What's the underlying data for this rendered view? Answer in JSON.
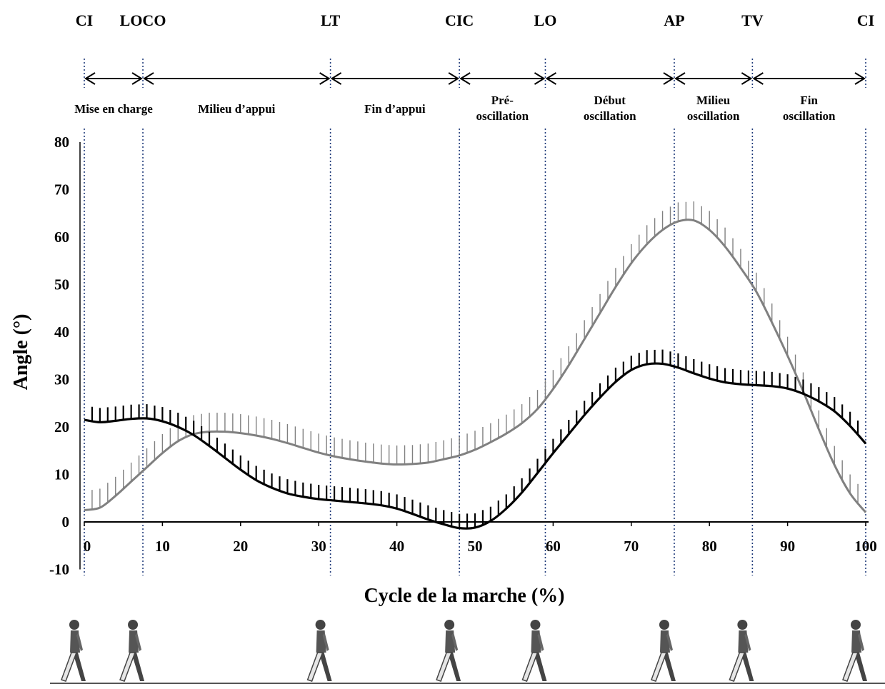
{
  "chart_data": {
    "type": "line",
    "xlabel": "Cycle de la marche (%)",
    "ylabel": "Angle (°)",
    "xlim": [
      0,
      100
    ],
    "ylim": [
      -10,
      80
    ],
    "x_ticks": [
      0,
      10,
      20,
      30,
      40,
      50,
      60,
      70,
      80,
      90,
      100
    ],
    "y_ticks": [
      -10,
      0,
      10,
      20,
      30,
      40,
      50,
      60,
      70,
      80
    ],
    "x_tick_labels": [
      "0",
      "10",
      "20",
      "30",
      "40",
      "50",
      "60",
      "70",
      "80",
      "90",
      "100"
    ],
    "y_tick_labels": [
      "-10",
      "0",
      "10",
      "20",
      "30",
      "40",
      "50",
      "60",
      "70",
      "80"
    ],
    "grid": false,
    "events": [
      {
        "label": "CI",
        "x": 0
      },
      {
        "label": "LOCO",
        "x": 7.5
      },
      {
        "label": "LT",
        "x": 31.5
      },
      {
        "label": "CIC",
        "x": 48
      },
      {
        "label": "LO",
        "x": 59
      },
      {
        "label": "AP",
        "x": 75.5
      },
      {
        "label": "TV",
        "x": 85.5
      },
      {
        "label": "CI",
        "x": 100
      }
    ],
    "phases": [
      {
        "lines": [
          "Mise en charge"
        ],
        "x_start": 0,
        "x_end": 7.5
      },
      {
        "lines": [
          "Milieu d’appui"
        ],
        "x_start": 7.5,
        "x_end": 31.5
      },
      {
        "lines": [
          "Fin d’appui"
        ],
        "x_start": 31.5,
        "x_end": 48
      },
      {
        "lines": [
          "Pré-",
          "oscillation"
        ],
        "x_start": 48,
        "x_end": 59
      },
      {
        "lines": [
          "Début",
          "oscillation"
        ],
        "x_start": 59,
        "x_end": 75.5
      },
      {
        "lines": [
          "Milieu",
          "oscillation"
        ],
        "x_start": 75.5,
        "x_end": 85.5
      },
      {
        "lines": [
          "Fin",
          "oscillation"
        ],
        "x_start": 85.5,
        "x_end": 100
      }
    ],
    "series": [
      {
        "color": "#808080",
        "points": [
          [
            0,
            2.5
          ],
          [
            2,
            3
          ],
          [
            4,
            5.5
          ],
          [
            6,
            8.5
          ],
          [
            8,
            11.5
          ],
          [
            10,
            14.5
          ],
          [
            12,
            17
          ],
          [
            14,
            18.5
          ],
          [
            16,
            19
          ],
          [
            18,
            19
          ],
          [
            20,
            18.7
          ],
          [
            22,
            18.2
          ],
          [
            24,
            17.5
          ],
          [
            26,
            16.6
          ],
          [
            28,
            15.6
          ],
          [
            30,
            14.6
          ],
          [
            32,
            13.8
          ],
          [
            34,
            13.2
          ],
          [
            36,
            12.7
          ],
          [
            38,
            12.3
          ],
          [
            40,
            12.1
          ],
          [
            42,
            12.2
          ],
          [
            44,
            12.5
          ],
          [
            46,
            13.2
          ],
          [
            48,
            14
          ],
          [
            50,
            15.2
          ],
          [
            52,
            16.8
          ],
          [
            54,
            18.6
          ],
          [
            56,
            20.8
          ],
          [
            58,
            23.8
          ],
          [
            60,
            28
          ],
          [
            62,
            33
          ],
          [
            64,
            38.5
          ],
          [
            66,
            44
          ],
          [
            68,
            49.5
          ],
          [
            70,
            54.5
          ],
          [
            72,
            58.5
          ],
          [
            74,
            61.5
          ],
          [
            76,
            63.3
          ],
          [
            78,
            63.5
          ],
          [
            80,
            61.5
          ],
          [
            82,
            58
          ],
          [
            84,
            53.5
          ],
          [
            86,
            48.5
          ],
          [
            88,
            42
          ],
          [
            90,
            35
          ],
          [
            92,
            27.5
          ],
          [
            94,
            19.5
          ],
          [
            96,
            12
          ],
          [
            98,
            6
          ],
          [
            100,
            2
          ]
        ],
        "error": 4
      },
      {
        "color": "#000000",
        "points": [
          [
            0,
            21.5
          ],
          [
            2,
            21
          ],
          [
            4,
            21.3
          ],
          [
            6,
            21.7
          ],
          [
            8,
            21.8
          ],
          [
            10,
            21.2
          ],
          [
            12,
            20
          ],
          [
            14,
            18.3
          ],
          [
            16,
            16
          ],
          [
            18,
            13.5
          ],
          [
            20,
            11
          ],
          [
            22,
            8.8
          ],
          [
            24,
            7.2
          ],
          [
            26,
            6
          ],
          [
            28,
            5.3
          ],
          [
            30,
            4.8
          ],
          [
            32,
            4.5
          ],
          [
            34,
            4.2
          ],
          [
            36,
            3.9
          ],
          [
            38,
            3.5
          ],
          [
            40,
            2.8
          ],
          [
            42,
            1.7
          ],
          [
            44,
            0.5
          ],
          [
            46,
            -0.5
          ],
          [
            48,
            -1.3
          ],
          [
            50,
            -1.2
          ],
          [
            52,
            0.2
          ],
          [
            54,
            2.8
          ],
          [
            56,
            6.2
          ],
          [
            58,
            10.3
          ],
          [
            60,
            14.5
          ],
          [
            62,
            18.5
          ],
          [
            64,
            22.5
          ],
          [
            66,
            26.2
          ],
          [
            68,
            29.5
          ],
          [
            70,
            32
          ],
          [
            72,
            33.2
          ],
          [
            74,
            33.3
          ],
          [
            76,
            32.5
          ],
          [
            78,
            31.3
          ],
          [
            80,
            30.2
          ],
          [
            82,
            29.4
          ],
          [
            84,
            29
          ],
          [
            86,
            28.8
          ],
          [
            88,
            28.6
          ],
          [
            90,
            28.1
          ],
          [
            92,
            27
          ],
          [
            94,
            25.4
          ],
          [
            96,
            23.3
          ],
          [
            98,
            20.2
          ],
          [
            100,
            16.5
          ]
        ],
        "error": 3
      }
    ]
  }
}
